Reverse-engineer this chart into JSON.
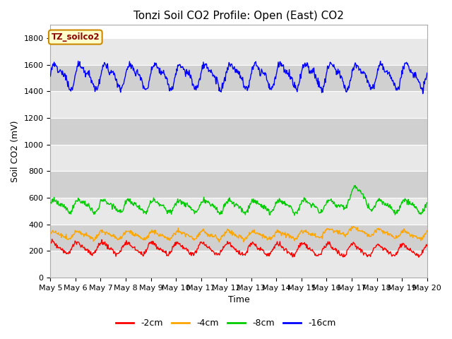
{
  "title": "Tonzi Soil CO2 Profile: Open (East) CO2",
  "ylabel": "Soil CO2 (mV)",
  "xlabel": "Time",
  "xlim": [
    0,
    15
  ],
  "ylim": [
    0,
    1900
  ],
  "yticks": [
    0,
    200,
    400,
    600,
    800,
    1000,
    1200,
    1400,
    1600,
    1800
  ],
  "xtick_labels": [
    "May 5",
    "May 6",
    "May 7",
    "May 8",
    "May 9",
    "May 10",
    "May 11",
    "May 12",
    "May 13",
    "May 14",
    "May 15",
    "May 16",
    "May 17",
    "May 18",
    "May 19",
    "May 20"
  ],
  "colors": {
    "-2cm": "#ff0000",
    "-4cm": "#ffa500",
    "-8cm": "#00cc00",
    "-16cm": "#0000ff"
  },
  "legend_label": "TZ_soilco2",
  "background_color": "#ffffff",
  "plot_bg_color": "#ffffff",
  "band_light": "#e8e8e8",
  "band_dark": "#d0d0d0",
  "title_fontsize": 11,
  "axis_fontsize": 9,
  "tick_fontsize": 8
}
